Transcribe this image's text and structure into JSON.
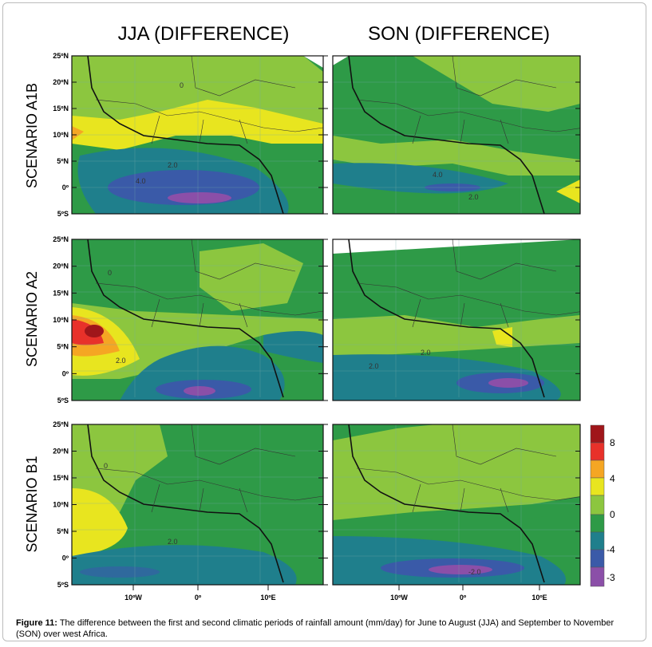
{
  "columns": [
    "JJA (DIFFERENCE)",
    "SON (DIFFERENCE)"
  ],
  "rows": [
    "SCENARIO  A1B",
    "SCENARIO  A2",
    "SCENARIO  B1"
  ],
  "latitude_labels": [
    "25ºN",
    "20ºN",
    "15ºN",
    "10ºN",
    "5ºN",
    "0º",
    "5ºS"
  ],
  "longitude_labels": [
    "10ºW",
    "0º",
    "10ºE"
  ],
  "colorbar_labels": [
    "8",
    "4",
    "0",
    "-4",
    "-3"
  ],
  "contour_labels": {
    "zero": "0",
    "two": "2.0",
    "minus_two": "-2.0",
    "four": "4.0"
  },
  "caption": {
    "label": "Figure 11:",
    "text": " The difference between the first and second climatic periods of rainfall amount (mm/day) for June to August (JJA) and September to November (SON) over west Africa."
  }
}
